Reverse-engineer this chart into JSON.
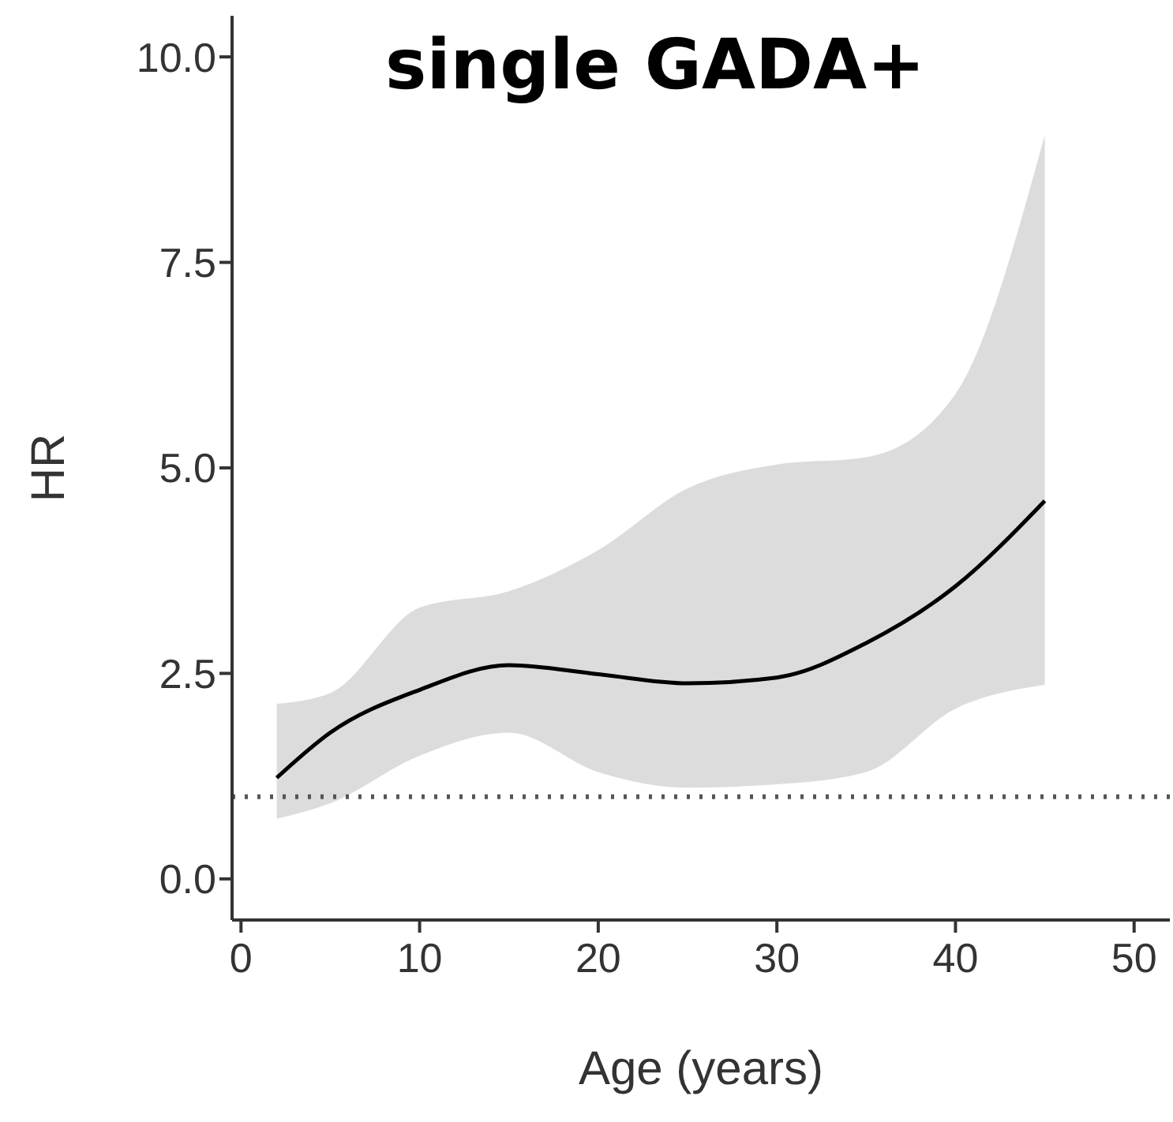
{
  "chart_data": {
    "type": "line",
    "title": "single GADA+",
    "xlabel": "Age (years)",
    "ylabel": "HR",
    "x": [
      2,
      5,
      10,
      15,
      20,
      25,
      30,
      35,
      40,
      45
    ],
    "series": [
      {
        "color": "#000000",
        "values": [
          1.23,
          1.78,
          2.3,
          2.6,
          2.49,
          2.38,
          2.45,
          2.87,
          3.56,
          4.6
        ],
        "lower": [
          0.73,
          0.92,
          1.5,
          1.78,
          1.3,
          1.11,
          1.15,
          1.3,
          2.07,
          2.36
        ],
        "upper": [
          2.13,
          2.26,
          3.3,
          3.5,
          4.0,
          4.75,
          5.04,
          5.13,
          5.9,
          9.05
        ]
      }
    ],
    "xlim": [
      -0.5,
      52
    ],
    "xticks": [
      0,
      10,
      20,
      30,
      40,
      50
    ],
    "ylim": [
      -0.5,
      10.5
    ],
    "yticks": [
      {
        "value": 0,
        "label": "0.0"
      },
      {
        "value": 2.5,
        "label": "2.5"
      },
      {
        "value": 5,
        "label": "5.0"
      },
      {
        "value": 7.5,
        "label": "7.5"
      },
      {
        "value": 10,
        "label": "10.0"
      }
    ],
    "ref_lines": [
      {
        "axis": "y",
        "value": 1,
        "color": "#555555",
        "line_style": "dotted"
      }
    ],
    "marker": "none",
    "line_style": "solid"
  }
}
